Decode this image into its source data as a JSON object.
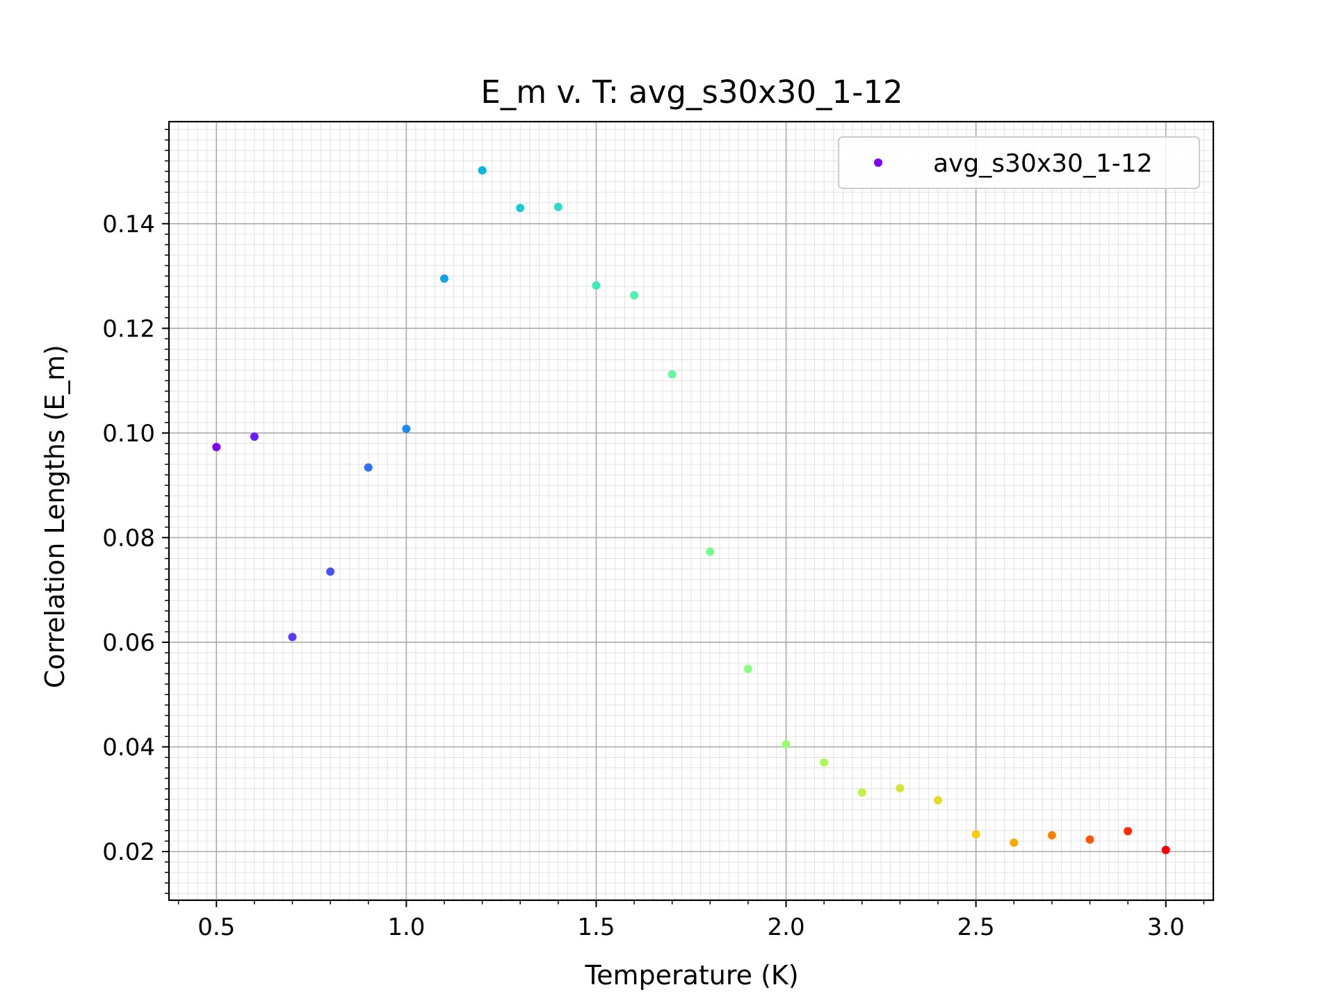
{
  "chart_data": {
    "type": "scatter",
    "title": "E_m v. T: avg_s30x30_1-12",
    "xlabel": "Temperature (K)",
    "ylabel": "Correlation Lengths (E_m)",
    "xlim": [
      0.375,
      3.125
    ],
    "ylim": [
      0.0107,
      0.1595
    ],
    "x_ticks": [
      0.5,
      1.0,
      1.5,
      2.0,
      2.5,
      3.0
    ],
    "x_tick_labels": [
      "0.5",
      "1.0",
      "1.5",
      "2.0",
      "2.5",
      "3.0"
    ],
    "y_ticks": [
      0.02,
      0.04,
      0.06,
      0.08,
      0.1,
      0.12,
      0.14
    ],
    "y_tick_labels": [
      "0.02",
      "0.04",
      "0.06",
      "0.08",
      "0.10",
      "0.12",
      "0.14"
    ],
    "grid": true,
    "minor_grid": true,
    "legend_position": "top-right",
    "colormap": "rainbow",
    "series": [
      {
        "name": "avg_s30x30_1-12",
        "color": "#7f00ff",
        "points": [
          {
            "x": 0.5,
            "y": 0.0973,
            "color": "#7f00ff"
          },
          {
            "x": 0.6,
            "y": 0.0993,
            "color": "#6d1cff"
          },
          {
            "x": 0.7,
            "y": 0.061,
            "color": "#5a38fe"
          },
          {
            "x": 0.8,
            "y": 0.0735,
            "color": "#4755fb"
          },
          {
            "x": 0.9,
            "y": 0.0934,
            "color": "#3470f7"
          },
          {
            "x": 1.0,
            "y": 0.1008,
            "color": "#2189f1"
          },
          {
            "x": 1.1,
            "y": 0.1295,
            "color": "#0ea2ea"
          },
          {
            "x": 1.2,
            "y": 0.1502,
            "color": "#04b8e1"
          },
          {
            "x": 1.3,
            "y": 0.143,
            "color": "#17ccd7"
          },
          {
            "x": 1.4,
            "y": 0.1432,
            "color": "#2adcca"
          },
          {
            "x": 1.5,
            "y": 0.1282,
            "color": "#3deabd"
          },
          {
            "x": 1.6,
            "y": 0.1263,
            "color": "#50f4ae"
          },
          {
            "x": 1.7,
            "y": 0.1112,
            "color": "#63fb9f"
          },
          {
            "x": 1.8,
            "y": 0.0773,
            "color": "#76fe8e"
          },
          {
            "x": 1.9,
            "y": 0.0549,
            "color": "#88ff7d"
          },
          {
            "x": 2.0,
            "y": 0.0405,
            "color": "#9bfc6c"
          },
          {
            "x": 2.1,
            "y": 0.037,
            "color": "#aef75a"
          },
          {
            "x": 2.2,
            "y": 0.0313,
            "color": "#c1f048"
          },
          {
            "x": 2.3,
            "y": 0.0321,
            "color": "#d4e635"
          },
          {
            "x": 2.4,
            "y": 0.0298,
            "color": "#e6d922"
          },
          {
            "x": 2.5,
            "y": 0.0233,
            "color": "#f8cb0f"
          },
          {
            "x": 2.6,
            "y": 0.0217,
            "color": "#ffa800"
          },
          {
            "x": 2.7,
            "y": 0.0231,
            "color": "#ff7f00"
          },
          {
            "x": 2.8,
            "y": 0.0223,
            "color": "#ff5500"
          },
          {
            "x": 2.9,
            "y": 0.0239,
            "color": "#ff2a00"
          },
          {
            "x": 3.0,
            "y": 0.0203,
            "color": "#ff0000"
          }
        ]
      }
    ]
  }
}
